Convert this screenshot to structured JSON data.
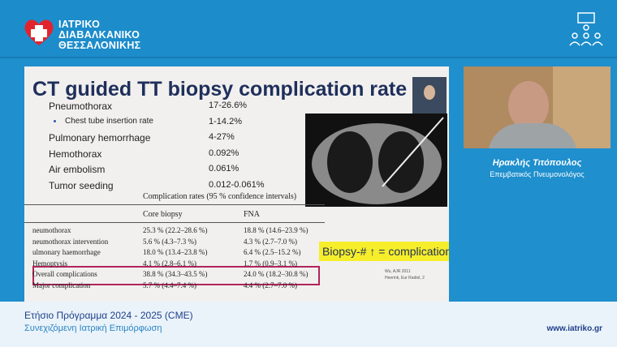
{
  "header": {
    "logo_lines": [
      "ΙΑΤΡΙΚΟ",
      "ΔΙΑΒΑΛΚΑΝΙΚΟ",
      "ΘΕΣΣΑΛΟΝΙΚΗΣ"
    ]
  },
  "slide": {
    "title": "CT guided TT biopsy complication rate",
    "items": [
      {
        "label": "Pneumothorax",
        "value": "17-26.6%",
        "sub": false
      },
      {
        "label": "Chest tube insertion rate",
        "value": "1-14.2%",
        "sub": true
      },
      {
        "label": "Pulmonary hemorrhage",
        "value": "4-27%",
        "sub": false
      },
      {
        "label": "Hemothorax",
        "value": "0.092%",
        "sub": false
      },
      {
        "label": "Air embolism",
        "value": "0.061%",
        "sub": false
      },
      {
        "label": "Tumor seeding",
        "value": "0.012-0.061%",
        "sub": false
      }
    ],
    "table": {
      "caption": "Complication rates (95 % confidence intervals)",
      "headers": [
        "Core biopsy",
        "FNA"
      ],
      "rows": [
        [
          "neumothorax",
          "25.3 % (22.2–28.6 %)",
          "18.8 % (14.6–23.9 %)"
        ],
        [
          "neumothorax intervention",
          "5.6 % (4.3–7.3 %)",
          "4.3 % (2.7–7.0 %)"
        ],
        [
          "ulmonary haemorrhage",
          "18.0 % (13.4–23.8 %)",
          "6.4 % (2.5–15.2 %)"
        ],
        [
          "Hemoptysis",
          "4.1 % (2.8–6.1 %)",
          "1.7 % (0.9–3.1 %)"
        ],
        [
          "Overall complications",
          "38.8 % (34.3–43.5 %)",
          "24.0 % (18.2–30.8 %)"
        ],
        [
          "Major complication",
          "5.7 % (4.4–7.4 %)",
          "4.4 % (2.7–7.0 %)"
        ]
      ]
    },
    "callout": "Biopsy-# ↑ = complication",
    "citations": [
      "Wu, AJR 2011",
      "Heerink, Eur Radiol, 2"
    ]
  },
  "speaker": {
    "name": "Ηρακλής Τιτόπουλος",
    "role": "Επεμβατικός Πνευμονολόγος"
  },
  "footer": {
    "program": "Ετήσιο Πρόγραμμα 2024 - 2025 (CME)",
    "subtitle": "Συνεχιζόμενη Ιατρική Επιμόρφωση",
    "url": "www.iatriko.gr"
  }
}
